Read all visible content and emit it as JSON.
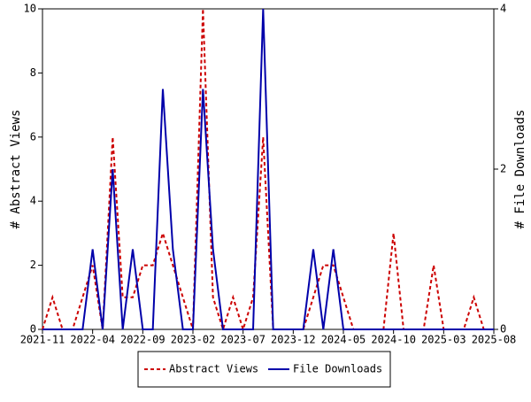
{
  "chart_data": {
    "type": "line",
    "categories": [
      "2021-11",
      null,
      null,
      null,
      null,
      "2022-04",
      null,
      null,
      null,
      null,
      "2022-09",
      null,
      null,
      null,
      null,
      "2023-02",
      null,
      null,
      null,
      null,
      "2023-07",
      null,
      null,
      null,
      null,
      "2023-12",
      null,
      null,
      null,
      null,
      "2024-05",
      null,
      null,
      null,
      null,
      "2024-10",
      null,
      null,
      null,
      null,
      "2025-03",
      null,
      null,
      null,
      null,
      "2025-08"
    ],
    "series": [
      {
        "name": "Abstract Views",
        "color": "#cc0000",
        "style": "dashed",
        "values": [
          0,
          1,
          0,
          0,
          1,
          2,
          0,
          6,
          1,
          1,
          2,
          2,
          3,
          2,
          1,
          0,
          10,
          1,
          0,
          1,
          0,
          1,
          6,
          0,
          0,
          0,
          0,
          1,
          2,
          2,
          1,
          0,
          0,
          0,
          0,
          3,
          0,
          0,
          0,
          2,
          0,
          0,
          0,
          1,
          0,
          0
        ]
      },
      {
        "name": "File Downloads",
        "color": "#0000aa",
        "style": "solid",
        "axis": "y2",
        "values": [
          0,
          0,
          0,
          0,
          0,
          1,
          0,
          2,
          0,
          1,
          0,
          0,
          3,
          1,
          0,
          0,
          3,
          1,
          0,
          0,
          0,
          0,
          4,
          0,
          0,
          0,
          0,
          1,
          0,
          1,
          0,
          0,
          0,
          0,
          0,
          0,
          0,
          0,
          0,
          0,
          0,
          0,
          0,
          0,
          0,
          0
        ]
      }
    ],
    "ylabel": "# Abstract Views",
    "y2label": "# File Downloads",
    "ylim": [
      0,
      10
    ],
    "yticks": [
      0,
      2,
      4,
      6,
      8,
      10
    ],
    "y2lim": [
      0,
      4
    ],
    "y2ticks": [
      0,
      2,
      4
    ]
  }
}
